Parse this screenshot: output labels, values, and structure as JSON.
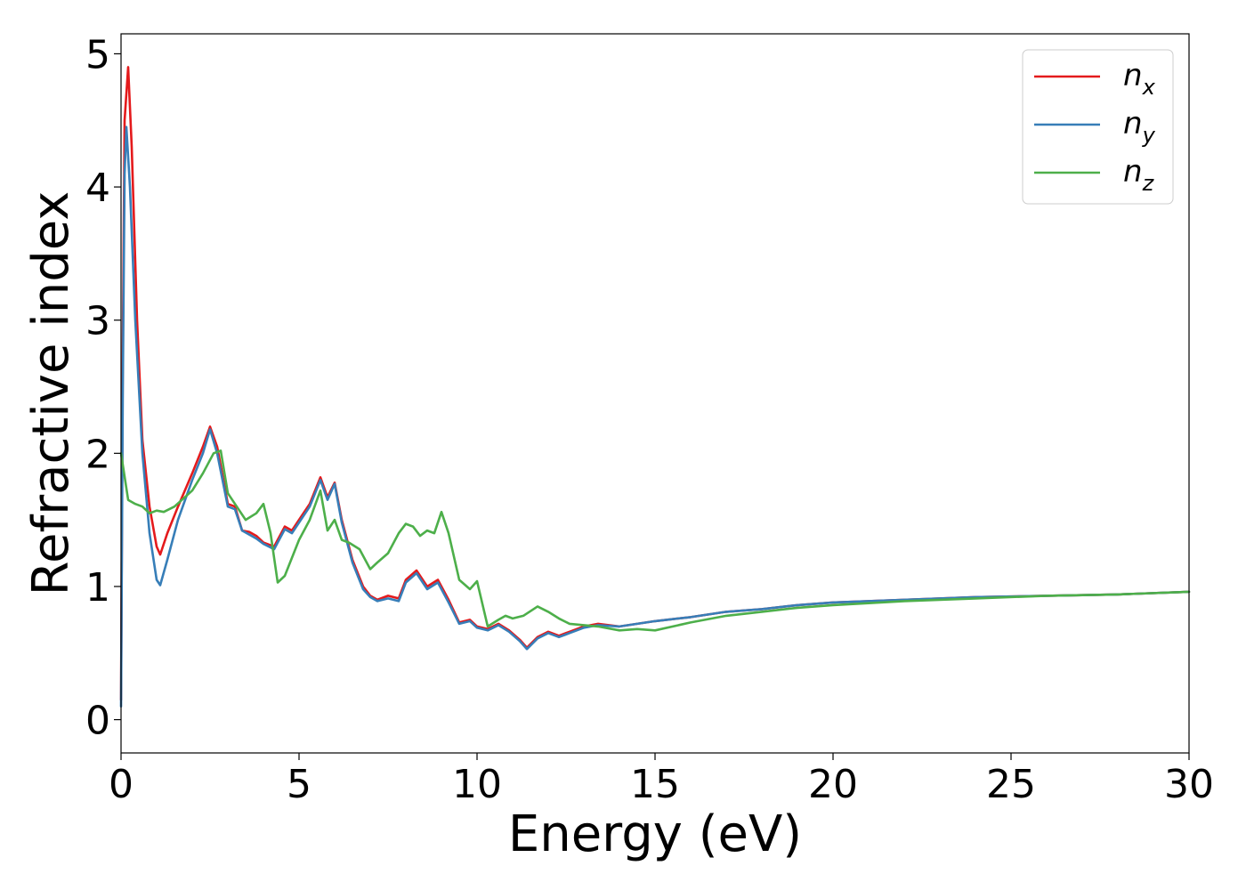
{
  "chart_data": {
    "type": "line",
    "title": "",
    "xlabel": "Energy (eV)",
    "ylabel": "Refractive index",
    "xlim": [
      0,
      30
    ],
    "ylim": [
      -0.25,
      5.15
    ],
    "xticks": [
      0,
      5,
      10,
      15,
      20,
      25,
      30
    ],
    "yticks": [
      0,
      1,
      2,
      3,
      4,
      5
    ],
    "grid": false,
    "legend_position": "top-right",
    "series": [
      {
        "name": "n",
        "subscript": "x",
        "color": "#e41a1c",
        "x": [
          0,
          0.05,
          0.1,
          0.2,
          0.3,
          0.45,
          0.6,
          0.8,
          1.0,
          1.1,
          1.3,
          1.6,
          2.0,
          2.3,
          2.5,
          2.7,
          3.0,
          3.2,
          3.4,
          3.6,
          3.8,
          4.0,
          4.3,
          4.6,
          4.8,
          5.0,
          5.3,
          5.6,
          5.8,
          6.0,
          6.2,
          6.5,
          6.8,
          7.0,
          7.2,
          7.5,
          7.8,
          8.0,
          8.3,
          8.6,
          8.9,
          9.2,
          9.5,
          9.8,
          10.0,
          10.3,
          10.6,
          10.9,
          11.2,
          11.4,
          11.7,
          12.0,
          12.3,
          12.6,
          13.0,
          13.4,
          14.0,
          14.5,
          15.0,
          16.0,
          17.0,
          18.0,
          19.0,
          20.0,
          22.0,
          24.0,
          26.0,
          28.0,
          30.0
        ],
        "values": [
          0.15,
          2.8,
          4.5,
          4.9,
          4.3,
          3.0,
          2.1,
          1.6,
          1.3,
          1.24,
          1.4,
          1.6,
          1.85,
          2.05,
          2.2,
          2.05,
          1.62,
          1.6,
          1.42,
          1.41,
          1.38,
          1.33,
          1.3,
          1.45,
          1.42,
          1.5,
          1.62,
          1.82,
          1.67,
          1.78,
          1.5,
          1.2,
          1.0,
          0.93,
          0.9,
          0.93,
          0.91,
          1.05,
          1.12,
          1.0,
          1.05,
          0.9,
          0.73,
          0.75,
          0.7,
          0.68,
          0.72,
          0.67,
          0.6,
          0.54,
          0.62,
          0.66,
          0.63,
          0.66,
          0.7,
          0.72,
          0.7,
          0.72,
          0.74,
          0.77,
          0.81,
          0.83,
          0.86,
          0.88,
          0.9,
          0.92,
          0.93,
          0.94,
          0.96
        ]
      },
      {
        "name": "n",
        "subscript": "y",
        "color": "#377eb8",
        "x": [
          0,
          0.05,
          0.1,
          0.15,
          0.25,
          0.4,
          0.6,
          0.8,
          1.0,
          1.1,
          1.3,
          1.6,
          2.0,
          2.3,
          2.5,
          2.7,
          3.0,
          3.2,
          3.4,
          3.6,
          3.8,
          4.0,
          4.3,
          4.6,
          4.8,
          5.0,
          5.3,
          5.6,
          5.8,
          6.0,
          6.2,
          6.5,
          6.8,
          7.0,
          7.2,
          7.5,
          7.8,
          8.0,
          8.3,
          8.6,
          8.9,
          9.2,
          9.5,
          9.8,
          10.0,
          10.3,
          10.6,
          10.9,
          11.2,
          11.4,
          11.7,
          12.0,
          12.3,
          12.6,
          13.0,
          13.4,
          14.0,
          14.5,
          15.0,
          16.0,
          17.0,
          18.0,
          19.0,
          20.0,
          22.0,
          24.0,
          26.0,
          28.0,
          30.0
        ],
        "values": [
          0.1,
          2.5,
          4.1,
          4.45,
          4.0,
          3.0,
          2.0,
          1.4,
          1.05,
          1.01,
          1.2,
          1.5,
          1.8,
          2.0,
          2.18,
          2.0,
          1.6,
          1.58,
          1.42,
          1.39,
          1.36,
          1.32,
          1.28,
          1.43,
          1.4,
          1.48,
          1.6,
          1.8,
          1.65,
          1.77,
          1.48,
          1.18,
          0.98,
          0.92,
          0.89,
          0.91,
          0.89,
          1.03,
          1.1,
          0.98,
          1.03,
          0.88,
          0.72,
          0.74,
          0.69,
          0.67,
          0.71,
          0.66,
          0.59,
          0.53,
          0.61,
          0.65,
          0.62,
          0.65,
          0.69,
          0.71,
          0.7,
          0.72,
          0.74,
          0.77,
          0.81,
          0.83,
          0.86,
          0.88,
          0.9,
          0.92,
          0.93,
          0.94,
          0.96
        ]
      },
      {
        "name": "n",
        "subscript": "z",
        "color": "#4daf4a",
        "x": [
          0,
          0.2,
          0.4,
          0.6,
          0.8,
          1.0,
          1.2,
          1.5,
          2.0,
          2.3,
          2.6,
          2.8,
          3.0,
          3.2,
          3.5,
          3.8,
          4.0,
          4.2,
          4.4,
          4.6,
          5.0,
          5.3,
          5.6,
          5.8,
          6.0,
          6.2,
          6.4,
          6.7,
          7.0,
          7.2,
          7.5,
          7.8,
          8.0,
          8.2,
          8.4,
          8.6,
          8.8,
          9.0,
          9.2,
          9.5,
          9.8,
          10.0,
          10.3,
          10.6,
          10.8,
          11.0,
          11.3,
          11.7,
          12.0,
          12.3,
          12.6,
          13.0,
          13.4,
          14.0,
          14.5,
          15.0,
          16.0,
          17.0,
          18.0,
          19.0,
          20.0,
          22.0,
          24.0,
          26.0,
          28.0,
          30.0
        ],
        "values": [
          2.0,
          1.65,
          1.62,
          1.6,
          1.55,
          1.57,
          1.56,
          1.6,
          1.72,
          1.85,
          2.0,
          2.02,
          1.7,
          1.62,
          1.5,
          1.55,
          1.62,
          1.4,
          1.03,
          1.08,
          1.35,
          1.5,
          1.72,
          1.42,
          1.5,
          1.35,
          1.33,
          1.28,
          1.13,
          1.18,
          1.25,
          1.4,
          1.47,
          1.45,
          1.38,
          1.42,
          1.4,
          1.56,
          1.4,
          1.05,
          0.98,
          1.04,
          0.7,
          0.75,
          0.78,
          0.76,
          0.78,
          0.85,
          0.81,
          0.76,
          0.72,
          0.71,
          0.7,
          0.67,
          0.68,
          0.67,
          0.73,
          0.78,
          0.81,
          0.84,
          0.86,
          0.89,
          0.91,
          0.93,
          0.94,
          0.96
        ]
      }
    ]
  }
}
